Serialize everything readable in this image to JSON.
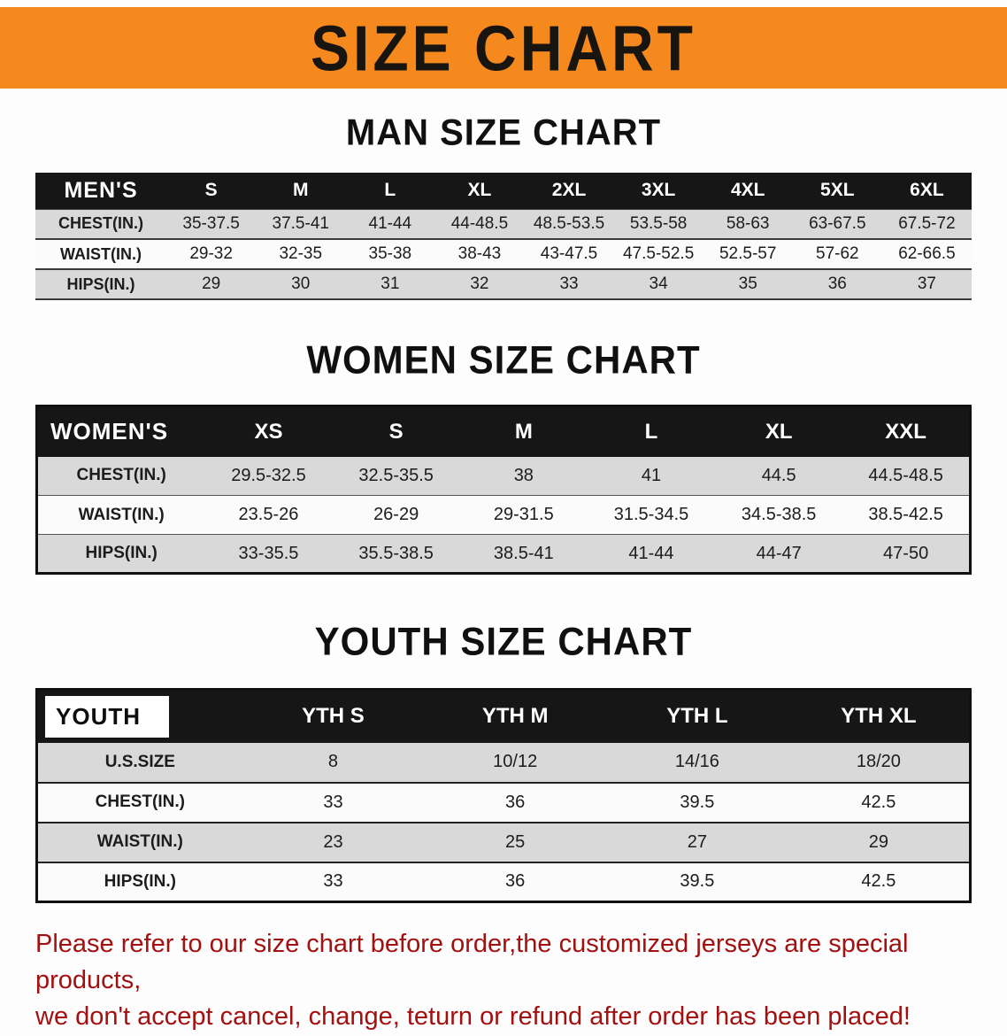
{
  "banner": {
    "title": "SIZE CHART",
    "bg_color": "#f6891e",
    "text_color": "#181410"
  },
  "men": {
    "heading": "MAN SIZE CHART",
    "header": [
      "MEN'S",
      "S",
      "M",
      "L",
      "XL",
      "2XL",
      "3XL",
      "4XL",
      "5XL",
      "6XL"
    ],
    "rows": [
      [
        "CHEST(IN.)",
        "35-37.5",
        "37.5-41",
        "41-44",
        "44-48.5",
        "48.5-53.5",
        "53.5-58",
        "58-63",
        "63-67.5",
        "67.5-72"
      ],
      [
        "WAIST(IN.)",
        "29-32",
        "32-35",
        "35-38",
        "38-43",
        "43-47.5",
        "47.5-52.5",
        "52.5-57",
        "57-62",
        "62-66.5"
      ],
      [
        "HIPS(IN.)",
        "29",
        "30",
        "31",
        "32",
        "33",
        "34",
        "35",
        "36",
        "37"
      ]
    ]
  },
  "women": {
    "heading": "WOMEN SIZE CHART",
    "header": [
      "WOMEN'S",
      "XS",
      "S",
      "M",
      "L",
      "XL",
      "XXL"
    ],
    "rows": [
      [
        "CHEST(IN.)",
        "29.5-32.5",
        "32.5-35.5",
        "38",
        "41",
        "44.5",
        "44.5-48.5"
      ],
      [
        "WAIST(IN.)",
        "23.5-26",
        "26-29",
        "29-31.5",
        "31.5-34.5",
        "34.5-38.5",
        "38.5-42.5"
      ],
      [
        "HIPS(IN.)",
        "33-35.5",
        "35.5-38.5",
        "38.5-41",
        "41-44",
        "44-47",
        "47-50"
      ]
    ]
  },
  "youth": {
    "heading": "YOUTH SIZE CHART",
    "header": [
      "YOUTH",
      "YTH S",
      "YTH M",
      "YTH L",
      "YTH XL"
    ],
    "rows": [
      [
        "U.S.SIZE",
        "8",
        "10/12",
        "14/16",
        "18/20"
      ],
      [
        "CHEST(IN.)",
        "33",
        "36",
        "39.5",
        "42.5"
      ],
      [
        "WAIST(IN.)",
        "23",
        "25",
        "27",
        "29"
      ],
      [
        "HIPS(IN.)",
        "33",
        "36",
        "39.5",
        "42.5"
      ]
    ]
  },
  "footer": {
    "line1": "Please refer to our size chart before order,the customized jerseys are special products,",
    "line2": "we don't accept cancel, change, teturn or refund after order has been placed!",
    "text_color": "#a21010"
  }
}
